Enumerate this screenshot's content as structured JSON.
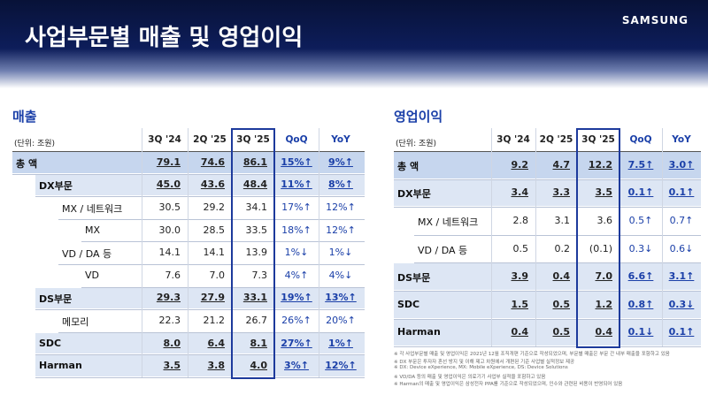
{
  "header": {
    "title": "사업부문별 매출 및 영업이익",
    "brand": "SAMSUNG"
  },
  "sales": {
    "title": "매출",
    "unit": "(단위: 조원)",
    "columns": [
      "3Q '24",
      "2Q '25",
      "3Q '25",
      "QoQ",
      "YoY"
    ],
    "rows": [
      {
        "label": "총 액",
        "cells": [
          "79.1",
          "74.6",
          "86.1",
          "15%↑",
          "9%↑"
        ]
      },
      {
        "label": "DX부문",
        "cells": [
          "45.0",
          "43.6",
          "48.4",
          "11%↑",
          "8%↑"
        ]
      },
      {
        "label": "MX / 네트워크",
        "cells": [
          "30.5",
          "29.2",
          "34.1",
          "17%↑",
          "12%↑"
        ]
      },
      {
        "label": "MX",
        "cells": [
          "30.0",
          "28.5",
          "33.5",
          "18%↑",
          "12%↑"
        ]
      },
      {
        "label": "VD / DA 등",
        "cells": [
          "14.1",
          "14.1",
          "13.9",
          "1%↓",
          "1%↓"
        ]
      },
      {
        "label": "VD",
        "cells": [
          "7.6",
          "7.0",
          "7.3",
          "4%↑",
          "4%↓"
        ]
      },
      {
        "label": "DS부문",
        "cells": [
          "29.3",
          "27.9",
          "33.1",
          "19%↑",
          "13%↑"
        ]
      },
      {
        "label": "메모리",
        "cells": [
          "22.3",
          "21.2",
          "26.7",
          "26%↑",
          "20%↑"
        ]
      },
      {
        "label": "SDC",
        "cells": [
          "8.0",
          "6.4",
          "8.1",
          "27%↑",
          "1%↑"
        ]
      },
      {
        "label": "Harman",
        "cells": [
          "3.5",
          "3.8",
          "4.0",
          "3%↑",
          "12%↑"
        ]
      }
    ]
  },
  "profit": {
    "title": "영업이익",
    "unit": "(단위: 조원)",
    "columns": [
      "3Q '24",
      "2Q '25",
      "3Q '25",
      "QoQ",
      "YoY"
    ],
    "rows": [
      {
        "label": "총 액",
        "cells": [
          "9.2",
          "4.7",
          "12.2",
          "7.5↑",
          "3.0↑"
        ]
      },
      {
        "label": "DX부문",
        "cells": [
          "3.4",
          "3.3",
          "3.5",
          "0.1↑",
          "0.1↑"
        ]
      },
      {
        "label": "MX / 네트워크",
        "cells": [
          "2.8",
          "3.1",
          "3.6",
          "0.5↑",
          "0.7↑"
        ]
      },
      {
        "label": "VD / DA 등",
        "cells": [
          "0.5",
          "0.2",
          "(0.1)",
          "0.3↓",
          "0.6↓"
        ]
      },
      {
        "label": "DS부문",
        "cells": [
          "3.9",
          "0.4",
          "7.0",
          "6.6↑",
          "3.1↑"
        ]
      },
      {
        "label": "SDC",
        "cells": [
          "1.5",
          "0.5",
          "1.2",
          "0.8↑",
          "0.3↓"
        ]
      },
      {
        "label": "Harman",
        "cells": [
          "0.4",
          "0.5",
          "0.4",
          "0.1↓",
          "0.1↑"
        ]
      }
    ]
  },
  "footnotes": [
    "※ 각 사업부문별 매출 및 영업이익은 2021년 12월 조직개편 기준으로 작성되었으며, 부문별 매출은 부문 간 내부 매출을 포함하고 있음",
    "※ DX 부문은 투자자 혼선 방지 및 이해 제고 차원에서 개편된 기준 사업별 실적정보 제공",
    "※ DX: Device eXperience, MX: Mobile eXperience, DS: Device Solutions",
    "※ VD/DA 등의 매출 및 영업이익은 의료기기 사업부 실적을 포함하고 있음",
    "※ Harman의 매출 및 영업이익은 삼성전자 PPA를 기준으로 작성되었으며, 인수와 관련된 비용이 반영되어 있음"
  ]
}
